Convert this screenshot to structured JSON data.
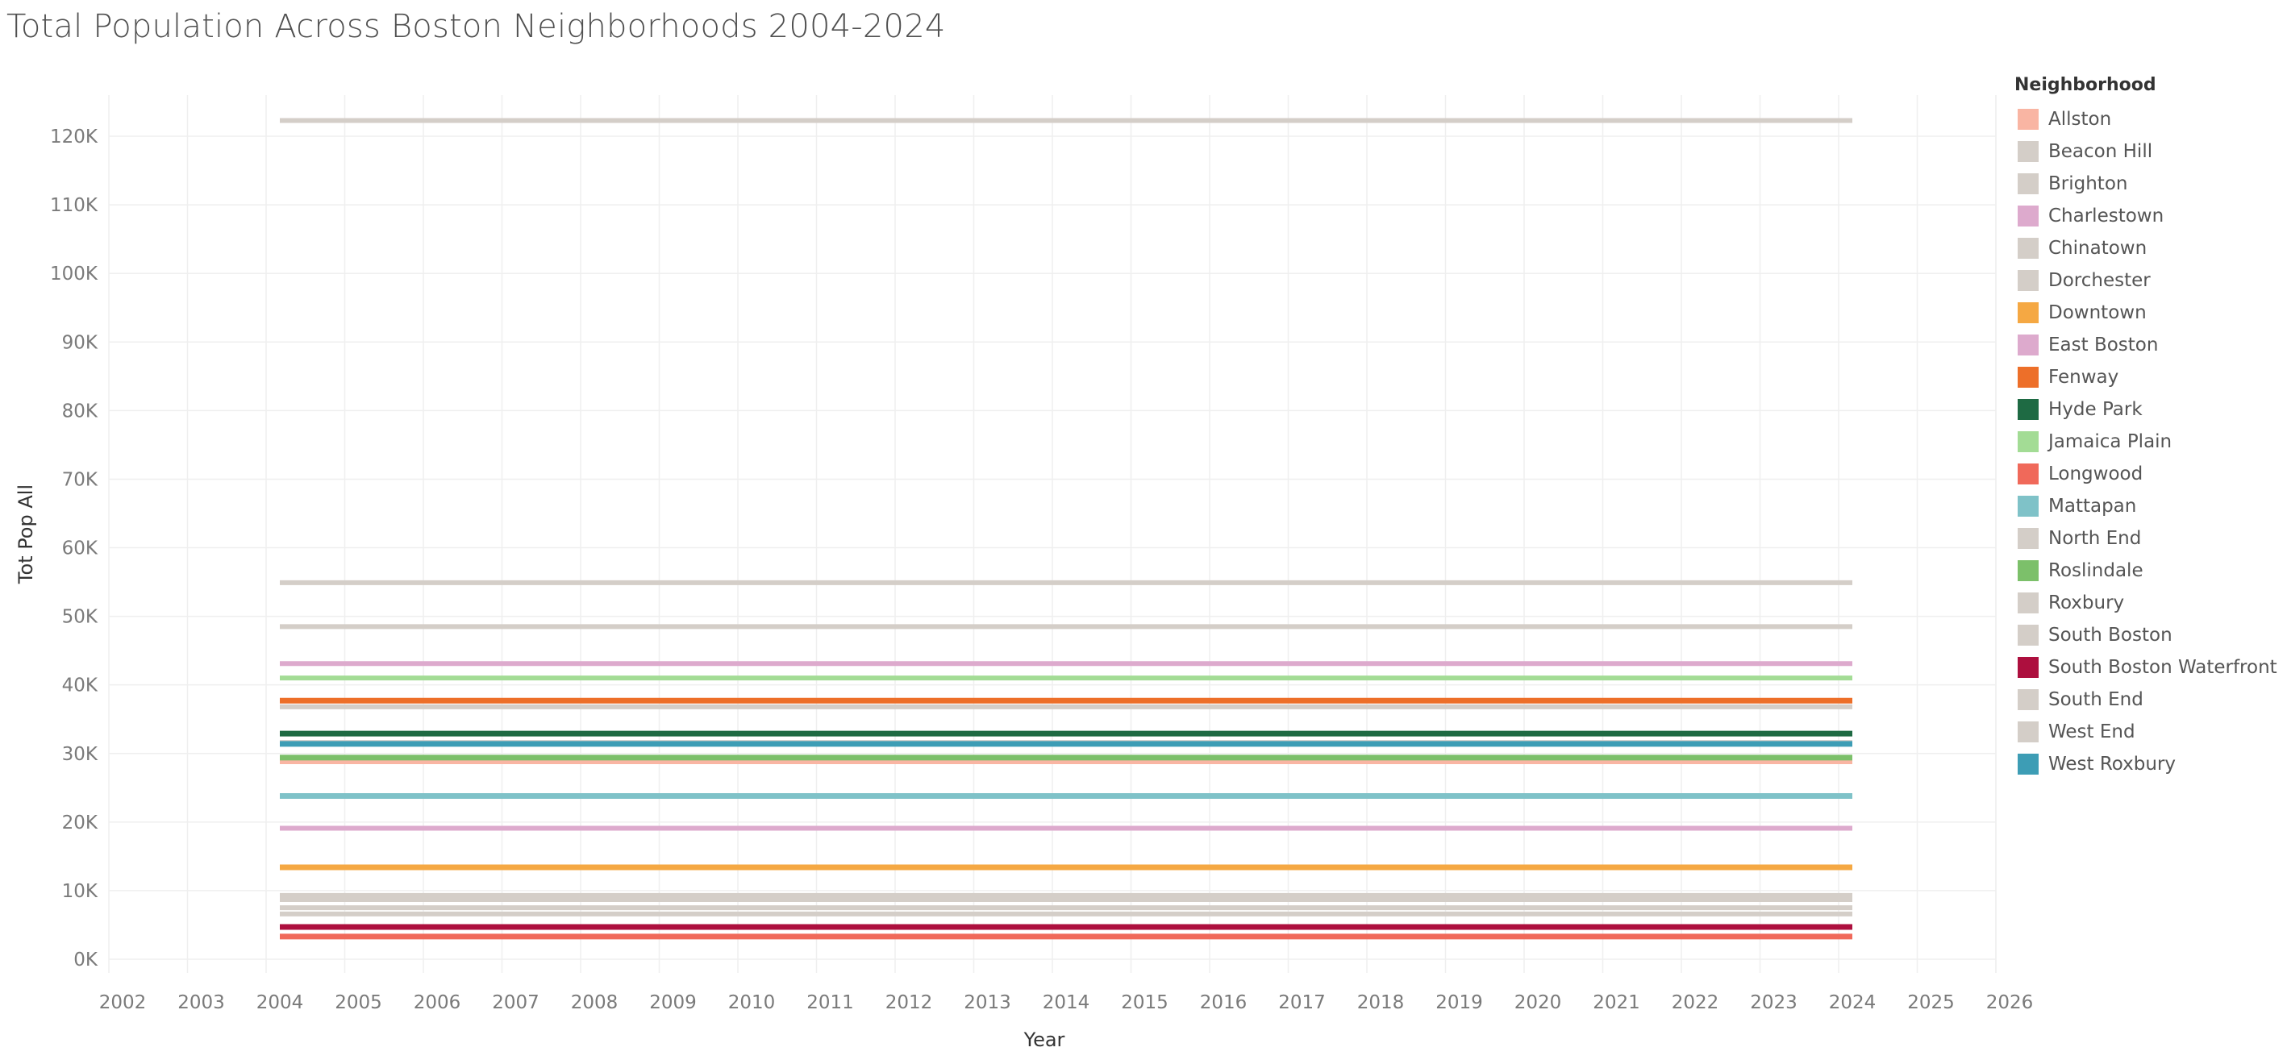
{
  "chart_data": {
    "type": "line",
    "title": "Total Population Across Boston Neighborhoods 2004-2024",
    "xlabel": "Year",
    "ylabel": "Tot Pop All",
    "x": [
      2004,
      2024
    ],
    "xlim": [
      2002,
      2026
    ],
    "x_ticks": [
      2002,
      2003,
      2004,
      2005,
      2006,
      2007,
      2008,
      2009,
      2010,
      2011,
      2012,
      2013,
      2014,
      2015,
      2016,
      2017,
      2018,
      2019,
      2020,
      2021,
      2022,
      2023,
      2024,
      2025,
      2026
    ],
    "ylim": [
      -2000,
      126000
    ],
    "y_ticks": [
      0,
      10000,
      20000,
      30000,
      40000,
      50000,
      60000,
      70000,
      80000,
      90000,
      100000,
      110000,
      120000
    ],
    "y_tick_labels": [
      "0K",
      "10K",
      "20K",
      "30K",
      "40K",
      "50K",
      "60K",
      "70K",
      "80K",
      "90K",
      "100K",
      "110K",
      "120K"
    ],
    "grid": true,
    "legend_title": "Neighborhood",
    "legend_position": "right",
    "series": [
      {
        "name": "Allston",
        "color": "#f9b5a3",
        "values": [
          28800,
          28800
        ]
      },
      {
        "name": "Beacon Hill",
        "color": "#d4cec8",
        "values": [
          9300,
          9300
        ]
      },
      {
        "name": "Brighton",
        "color": "#d4cec8",
        "values": [
          48500,
          48500
        ]
      },
      {
        "name": "Charlestown",
        "color": "#ddaacd",
        "values": [
          19100,
          19100
        ]
      },
      {
        "name": "Chinatown",
        "color": "#d4cec8",
        "values": [
          7500,
          7500
        ]
      },
      {
        "name": "Dorchester",
        "color": "#d4cec8",
        "values": [
          122300,
          122300
        ]
      },
      {
        "name": "Downtown",
        "color": "#f5a843",
        "values": [
          13400,
          13400
        ]
      },
      {
        "name": "East Boston",
        "color": "#ddaacd",
        "values": [
          43100,
          43100
        ]
      },
      {
        "name": "Fenway",
        "color": "#ed6f29",
        "values": [
          37700,
          37700
        ]
      },
      {
        "name": "Hyde Park",
        "color": "#1e6a43",
        "values": [
          32900,
          32900
        ]
      },
      {
        "name": "Jamaica Plain",
        "color": "#a3dc95",
        "values": [
          41000,
          41000
        ]
      },
      {
        "name": "Longwood",
        "color": "#f0695a",
        "values": [
          3300,
          3300
        ]
      },
      {
        "name": "Mattapan",
        "color": "#7fc2c8",
        "values": [
          23800,
          23800
        ]
      },
      {
        "name": "North End",
        "color": "#d4cec8",
        "values": [
          8700,
          8700
        ]
      },
      {
        "name": "Roslindale",
        "color": "#7cc06a",
        "values": [
          29400,
          29400
        ]
      },
      {
        "name": "Roxbury",
        "color": "#d4cec8",
        "values": [
          54900,
          54900
        ]
      },
      {
        "name": "South Boston",
        "color": "#d4cec8",
        "values": [
          36800,
          36800
        ]
      },
      {
        "name": "South Boston Waterfront",
        "color": "#ad0f3e",
        "values": [
          4700,
          4700
        ]
      },
      {
        "name": "South End",
        "color": "#d4cec8",
        "values": [
          31600,
          31600
        ]
      },
      {
        "name": "West End",
        "color": "#d4cec8",
        "values": [
          6600,
          6600
        ]
      },
      {
        "name": "West Roxbury",
        "color": "#3d9db5",
        "values": [
          31400,
          31400
        ]
      }
    ]
  }
}
